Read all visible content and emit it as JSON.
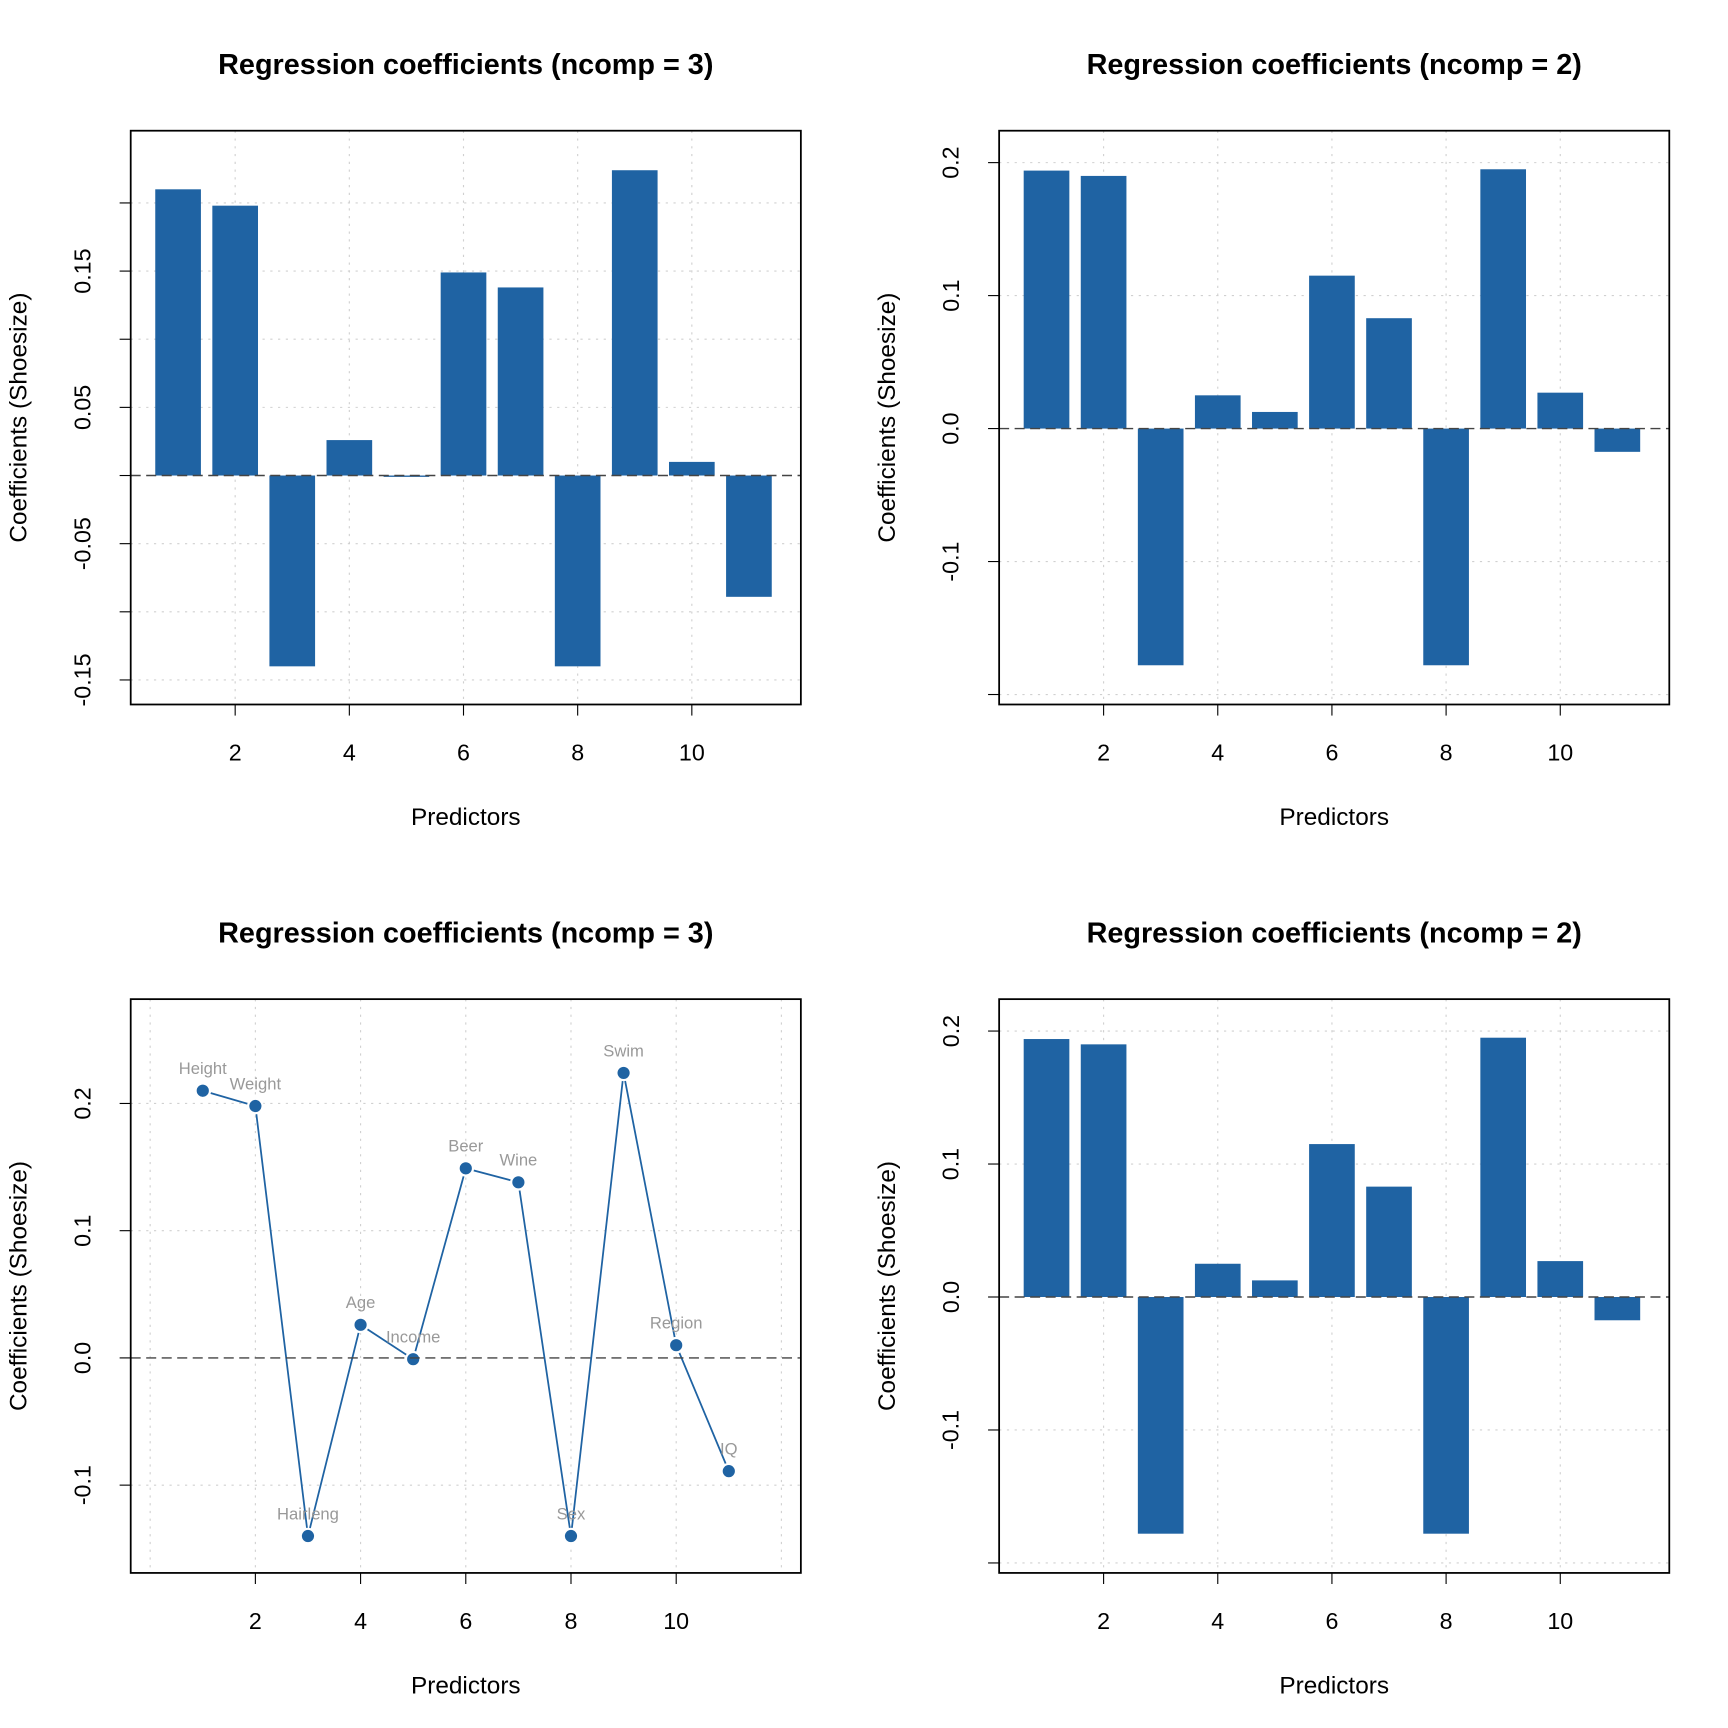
{
  "chart_data": [
    {
      "type": "bar",
      "title": "Regression coefficients (ncomp = 3)",
      "x_label": "Predictors",
      "y_label": "Coefficients (Shoesize)",
      "x": [
        1,
        2,
        3,
        4,
        5,
        6,
        7,
        8,
        9,
        10,
        11
      ],
      "values": [
        0.21,
        0.198,
        -0.14,
        0.026,
        -0.001,
        0.149,
        0.138,
        -0.14,
        0.224,
        0.01,
        -0.089
      ],
      "color": "#1f63a3",
      "reference_line": 0,
      "grid": true,
      "xlim": [
        0.17,
        11.91
      ],
      "ylim": [
        -0.168,
        0.253
      ],
      "xticks": [
        2,
        4,
        6,
        8,
        10
      ],
      "yticks": [
        -0.15,
        {
          "value": -0.1,
          "label": null
        },
        -0.05,
        {
          "value": 0,
          "label": null
        },
        0.05,
        {
          "value": 0.1,
          "label": null
        },
        0.15,
        {
          "value": 0.2,
          "label": null
        }
      ]
    },
    {
      "type": "bar",
      "title": "Regression coefficients (ncomp = 2)",
      "x_label": "Predictors",
      "y_label": "Coefficients (Shoesize)",
      "x": [
        1,
        2,
        3,
        4,
        5,
        6,
        7,
        8,
        9,
        10,
        11
      ],
      "values": [
        0.194,
        0.19,
        -0.178,
        0.025,
        0.0125,
        0.115,
        0.083,
        -0.178,
        0.195,
        0.027,
        -0.0175
      ],
      "color": "#1f63a3",
      "reference_line": 0,
      "grid": true,
      "xlim": [
        0.17,
        11.91
      ],
      "ylim": [
        -0.2075,
        0.224
      ],
      "xticks": [
        2,
        4,
        6,
        8,
        10
      ],
      "yticks": [
        {
          "value": -0.2,
          "label": null
        },
        -0.1,
        {
          "value": 0,
          "label": "0.0"
        },
        0.1,
        0.2
      ]
    },
    {
      "type": "line",
      "title": "Regression coefficients (ncomp = 3)",
      "x_label": "Predictors",
      "y_label": "Coefficients (Shoesize)",
      "x": [
        1,
        2,
        3,
        4,
        5,
        6,
        7,
        8,
        9,
        10,
        11
      ],
      "categories": [
        "Height",
        "Weight",
        "Hairleng",
        "Age",
        "Income",
        "Beer",
        "Wine",
        "Sex",
        "Swim",
        "Region",
        "IQ"
      ],
      "values": [
        0.21,
        0.198,
        -0.14,
        0.026,
        -0.001,
        0.149,
        0.138,
        -0.14,
        0.224,
        0.01,
        -0.089
      ],
      "color": "#1f63a3",
      "label_color": "#999999",
      "reference_line": 0,
      "grid": true,
      "xlim": [
        -0.37,
        12.37
      ],
      "ylim": [
        -0.169,
        0.282
      ],
      "xticks": [
        {
          "value": 0,
          "label": null
        },
        2,
        4,
        6,
        8,
        10,
        {
          "value": 12,
          "label": null
        }
      ],
      "yticks": [
        -0.1,
        {
          "value": 0,
          "label": "0.0"
        },
        0.1,
        0.2
      ]
    },
    {
      "type": "bar",
      "title": "Regression coefficients (ncomp = 2)",
      "x_label": "Predictors",
      "y_label": "Coefficients (Shoesize)",
      "x": [
        1,
        2,
        3,
        4,
        5,
        6,
        7,
        8,
        9,
        10,
        11
      ],
      "values": [
        0.194,
        0.19,
        -0.178,
        0.025,
        0.0125,
        0.115,
        0.083,
        -0.178,
        0.195,
        0.027,
        -0.0175
      ],
      "color": "#1f63a3",
      "reference_line": 0,
      "grid": true,
      "xlim": [
        0.17,
        11.91
      ],
      "ylim": [
        -0.2075,
        0.224
      ],
      "xticks": [
        2,
        4,
        6,
        8,
        10
      ],
      "yticks": [
        {
          "value": -0.2,
          "label": null
        },
        -0.1,
        {
          "value": 0,
          "label": "0.0"
        },
        0.1,
        0.2
      ]
    }
  ]
}
